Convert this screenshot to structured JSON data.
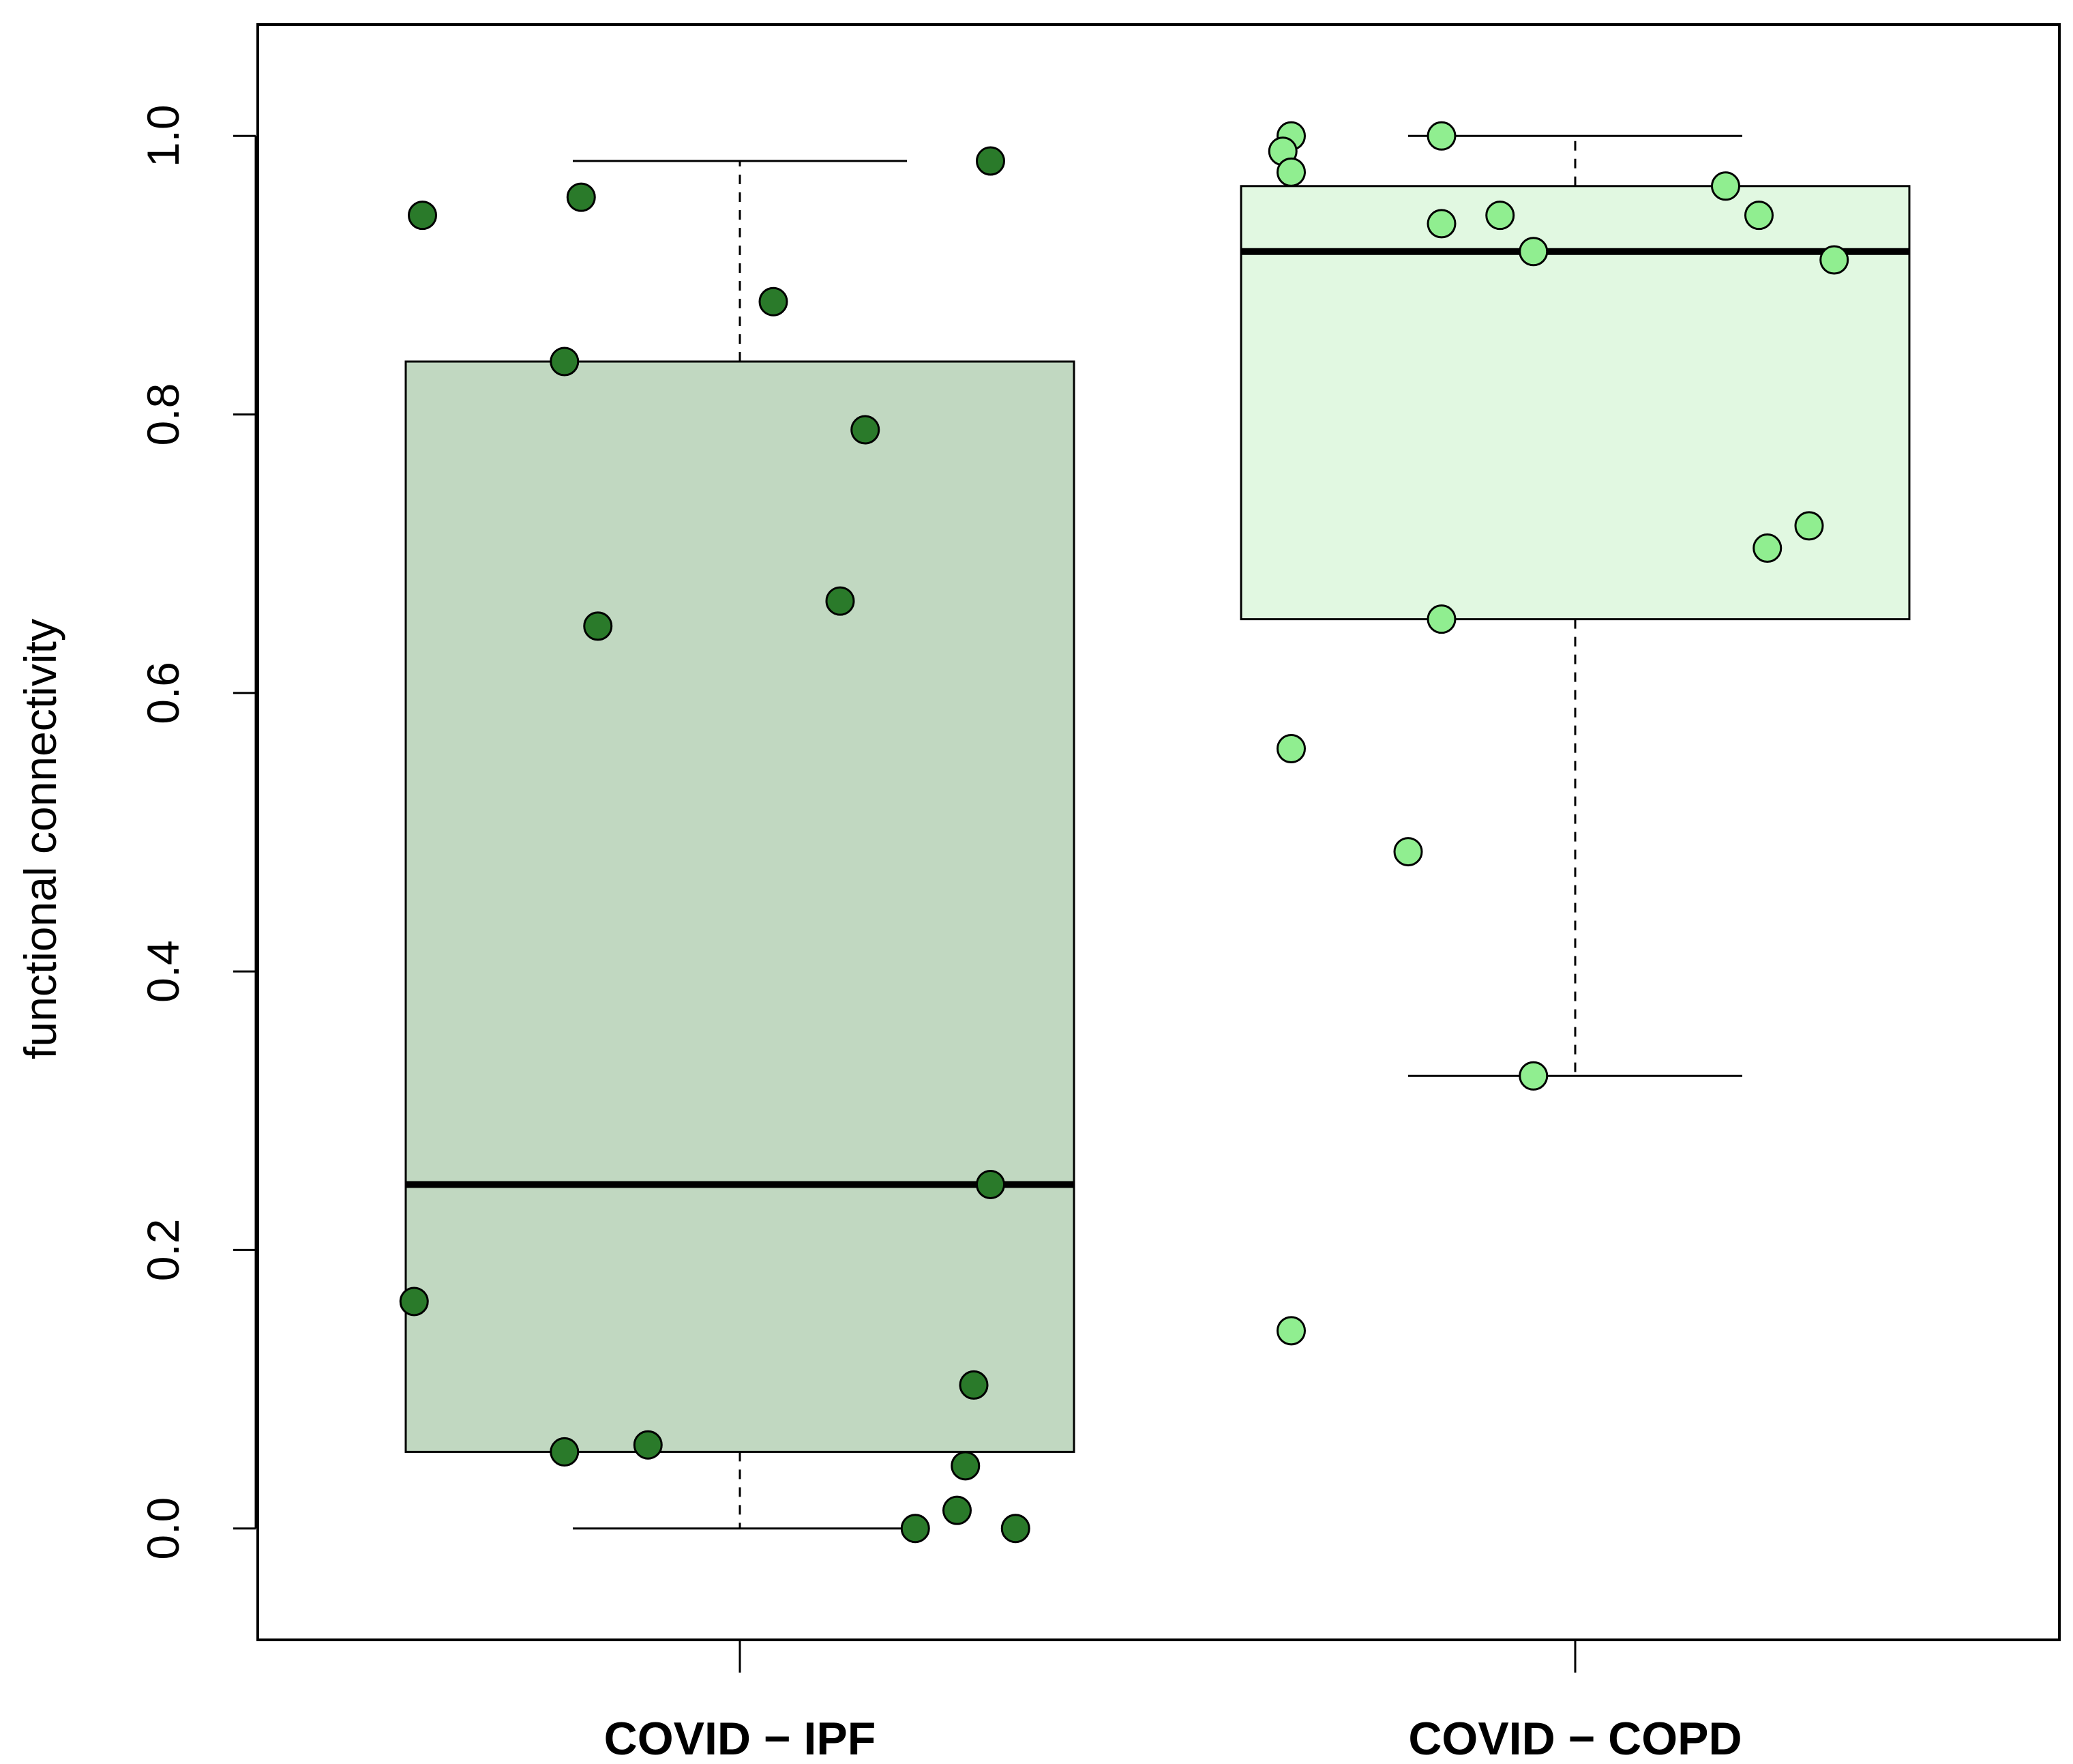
{
  "chart_data": {
    "type": "box",
    "title": "",
    "xlabel": "",
    "ylabel": "functional connectivity",
    "ylim": [
      -0.08,
      1.08
    ],
    "yticks": [
      0.0,
      0.2,
      0.4,
      0.6,
      0.8,
      1.0
    ],
    "ytick_labels": [
      "0.0",
      "0.2",
      "0.4",
      "0.6",
      "0.8",
      "1.0"
    ],
    "grid": false,
    "categories": [
      "COVID − IPF",
      "COVID − COPD"
    ],
    "boxes": [
      {
        "name": "COVID − IPF",
        "whisker_low": 0.0,
        "q1": 0.055,
        "median": 0.247,
        "q3": 0.838,
        "whisker_high": 0.982,
        "box_color": "#c1d8c1",
        "point_color": "#2a7a2a",
        "points": [
          {
            "x": -0.38,
            "y": 0.943
          },
          {
            "x": -0.19,
            "y": 0.956
          },
          {
            "x": 0.04,
            "y": 0.881
          },
          {
            "x": -0.21,
            "y": 0.838
          },
          {
            "x": 0.15,
            "y": 0.789
          },
          {
            "x": 0.12,
            "y": 0.666
          },
          {
            "x": -0.17,
            "y": 0.648
          },
          {
            "x": 0.3,
            "y": 0.982
          },
          {
            "x": 0.3,
            "y": 0.247
          },
          {
            "x": -0.39,
            "y": 0.163
          },
          {
            "x": 0.28,
            "y": 0.103
          },
          {
            "x": -0.21,
            "y": 0.055
          },
          {
            "x": -0.11,
            "y": 0.06
          },
          {
            "x": 0.27,
            "y": 0.045
          },
          {
            "x": 0.26,
            "y": 0.013
          },
          {
            "x": 0.21,
            "y": 0.0
          },
          {
            "x": 0.33,
            "y": 0.0
          }
        ]
      },
      {
        "name": "COVID − COPD",
        "whisker_low": 0.325,
        "q1": 0.653,
        "median": 0.917,
        "q3": 0.964,
        "whisker_high": 1.0,
        "box_color": "#e1f8e1",
        "point_color": "#90ee90",
        "points": [
          {
            "x": -0.34,
            "y": 1.0
          },
          {
            "x": -0.35,
            "y": 0.989
          },
          {
            "x": -0.34,
            "y": 0.974
          },
          {
            "x": -0.16,
            "y": 1.0
          },
          {
            "x": -0.16,
            "y": 0.937
          },
          {
            "x": -0.09,
            "y": 0.943
          },
          {
            "x": -0.05,
            "y": 0.917
          },
          {
            "x": 0.18,
            "y": 0.964
          },
          {
            "x": 0.22,
            "y": 0.943
          },
          {
            "x": 0.31,
            "y": 0.911
          },
          {
            "x": 0.28,
            "y": 0.72
          },
          {
            "x": 0.23,
            "y": 0.704
          },
          {
            "x": -0.16,
            "y": 0.653
          },
          {
            "x": -0.34,
            "y": 0.56
          },
          {
            "x": -0.2,
            "y": 0.486
          },
          {
            "x": -0.05,
            "y": 0.325
          },
          {
            "x": -0.34,
            "y": 0.142
          }
        ]
      }
    ]
  }
}
